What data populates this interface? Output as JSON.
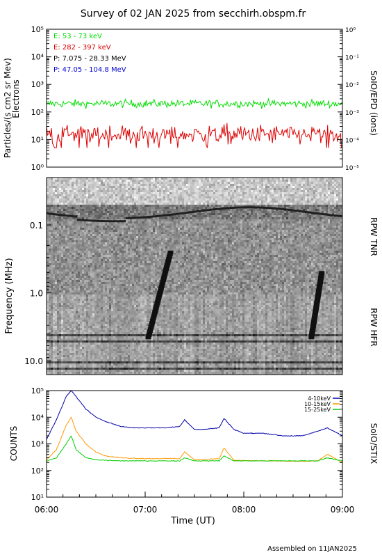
{
  "title": "Survey of 02 JAN 2025 from secchirh.obspm.fr",
  "footer": "Assembled on 11JAN2025",
  "chart_data": [
    {
      "panel": "SoIO/EPD",
      "type": "line",
      "ylabel": "Particles/(s cm2 sr Mev)",
      "ylabel2": "Electrons",
      "right_label": "SoIO/EPD (ions)",
      "yscale": "log",
      "ylim": [
        1,
        100000
      ],
      "y2lim": [
        1e-05,
        1
      ],
      "ytick_labels": [
        "10⁰",
        "10¹",
        "10²",
        "10³",
        "10⁴",
        "10⁵"
      ],
      "y2tick_labels": [
        "10⁻⁵",
        "10⁻⁴",
        "10⁻³",
        "10⁻²",
        "10⁻¹",
        "10⁰"
      ],
      "legend_placement": "top-left",
      "series": [
        {
          "name": "E: 53 - 73 keV",
          "color": "#00dd00",
          "level": 200,
          "spread": 0.12
        },
        {
          "name": "E: 282 - 397 keV",
          "color": "#dd0000",
          "level": 15,
          "spread": 0.3
        },
        {
          "name": "P: 7.075 - 28.33 MeV",
          "color": "#000000",
          "level": null
        },
        {
          "name": "P: 47.05 - 104.8 MeV",
          "color": "#0000cc",
          "level": null
        }
      ]
    },
    {
      "panel": "RPW",
      "type": "heatmap",
      "ylabel": "Frequency (MHz)",
      "yscale": "log",
      "ylim": [
        0.02,
        16
      ],
      "yaxis_inverted": true,
      "ytick_labels": [
        "0.1",
        "1.0",
        "10.0"
      ],
      "receivers": [
        "RPW TNR",
        "RPW HFR"
      ],
      "bursts": [
        {
          "start_time": "07:00",
          "end_time": "07:15",
          "top_freq_mhz": 0.25
        },
        {
          "start_time": "08:40",
          "end_time": "08:47",
          "top_freq_mhz": 0.5
        }
      ]
    },
    {
      "panel": "SoIO/STIX",
      "type": "line",
      "ylabel": "COUNTS",
      "right_label": "SoIO/STIX",
      "yscale": "log",
      "ylim": [
        10,
        100000
      ],
      "ytick_labels": [
        "10¹",
        "10²",
        "10³",
        "10⁴",
        "10⁵"
      ],
      "xlabel": "Time (UT)",
      "x_ticks": [
        "06:00",
        "07:00",
        "08:00",
        "09:00"
      ],
      "legend_placement": "top-right",
      "series": [
        {
          "name": "4-10keV",
          "color": "#0000aa",
          "time_hours": [
            6.0,
            6.1,
            6.2,
            6.25,
            6.3,
            6.4,
            6.5,
            6.6,
            6.75,
            6.9,
            7.0,
            7.2,
            7.35,
            7.4,
            7.5,
            7.6,
            7.75,
            7.8,
            7.9,
            8.0,
            8.2,
            8.4,
            8.6,
            8.75,
            8.85,
            9.0
          ],
          "values": [
            1500,
            8000,
            60000,
            100000,
            60000,
            20000,
            10000,
            7000,
            4500,
            4000,
            4000,
            4000,
            4500,
            8000,
            3500,
            3500,
            4000,
            9000,
            3500,
            2500,
            2500,
            2000,
            2000,
            3000,
            4000,
            2000
          ]
        },
        {
          "name": "10-15keV",
          "color": "#ff9900",
          "time_hours": [
            6.0,
            6.1,
            6.2,
            6.25,
            6.3,
            6.4,
            6.5,
            6.6,
            6.75,
            7.0,
            7.35,
            7.4,
            7.5,
            7.75,
            7.8,
            7.9,
            8.2,
            8.6,
            8.75,
            8.85,
            9.0
          ],
          "values": [
            250,
            600,
            5000,
            10000,
            3000,
            1000,
            500,
            350,
            300,
            280,
            280,
            500,
            250,
            280,
            700,
            240,
            230,
            220,
            230,
            400,
            200
          ]
        },
        {
          "name": "15-25keV",
          "color": "#00cc00",
          "time_hours": [
            6.0,
            6.1,
            6.2,
            6.25,
            6.3,
            6.4,
            6.5,
            6.75,
            7.0,
            7.35,
            7.4,
            7.5,
            7.75,
            7.8,
            7.9,
            8.5,
            8.75,
            8.85,
            9.0
          ],
          "values": [
            230,
            300,
            1000,
            2000,
            600,
            300,
            250,
            230,
            230,
            230,
            300,
            230,
            230,
            350,
            230,
            230,
            230,
            300,
            230
          ]
        }
      ]
    }
  ]
}
